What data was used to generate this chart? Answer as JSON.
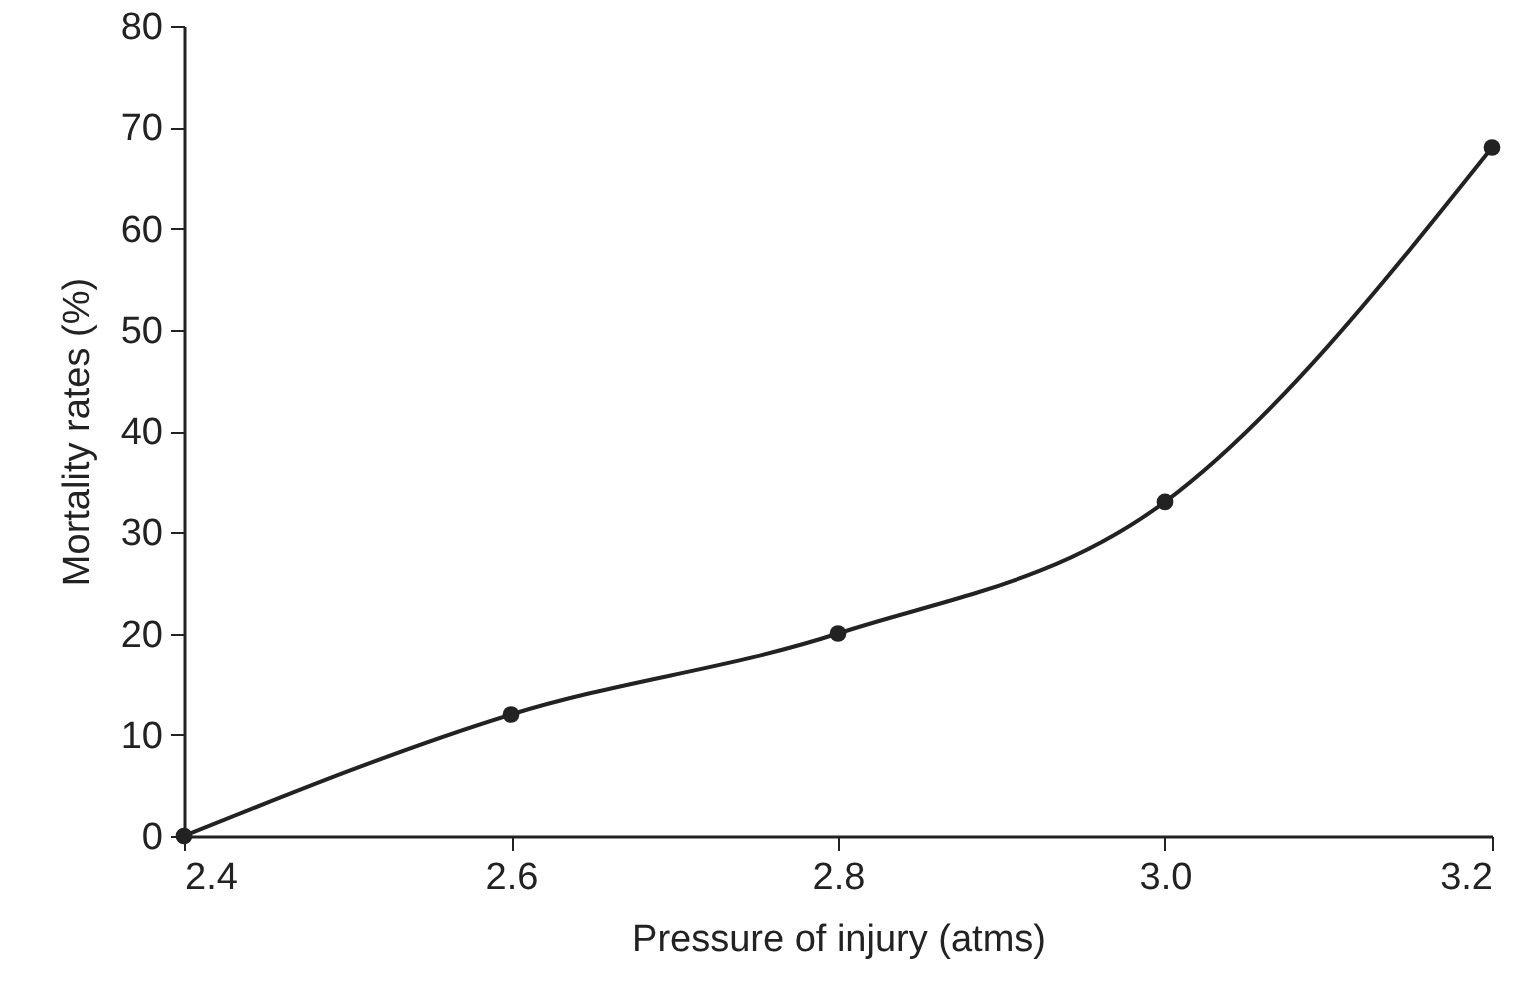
{
  "chart_data": {
    "type": "line",
    "xlabel": "Pressure of injury (atms)",
    "ylabel": "Mortality rates (%)",
    "x": [
      2.4,
      2.6,
      2.8,
      3.0,
      3.2
    ],
    "series": [
      {
        "color": "#222222",
        "values": [
          0,
          12,
          20,
          33,
          68
        ]
      }
    ],
    "xlim": [
      2.4,
      3.2
    ],
    "xticks": [
      {
        "value": 2.4,
        "label": "2.4"
      },
      {
        "value": 2.6,
        "label": "2.6"
      },
      {
        "value": 2.8,
        "label": "2.8"
      },
      {
        "value": 3,
        "label": "3.0"
      },
      {
        "value": 3.2,
        "label": "3.2"
      }
    ],
    "ylim": [
      0,
      80
    ],
    "yticks": [
      0,
      10,
      20,
      30,
      40,
      50,
      60,
      70,
      80
    ],
    "grid": false,
    "marker": "circle",
    "line_style": "solid"
  }
}
